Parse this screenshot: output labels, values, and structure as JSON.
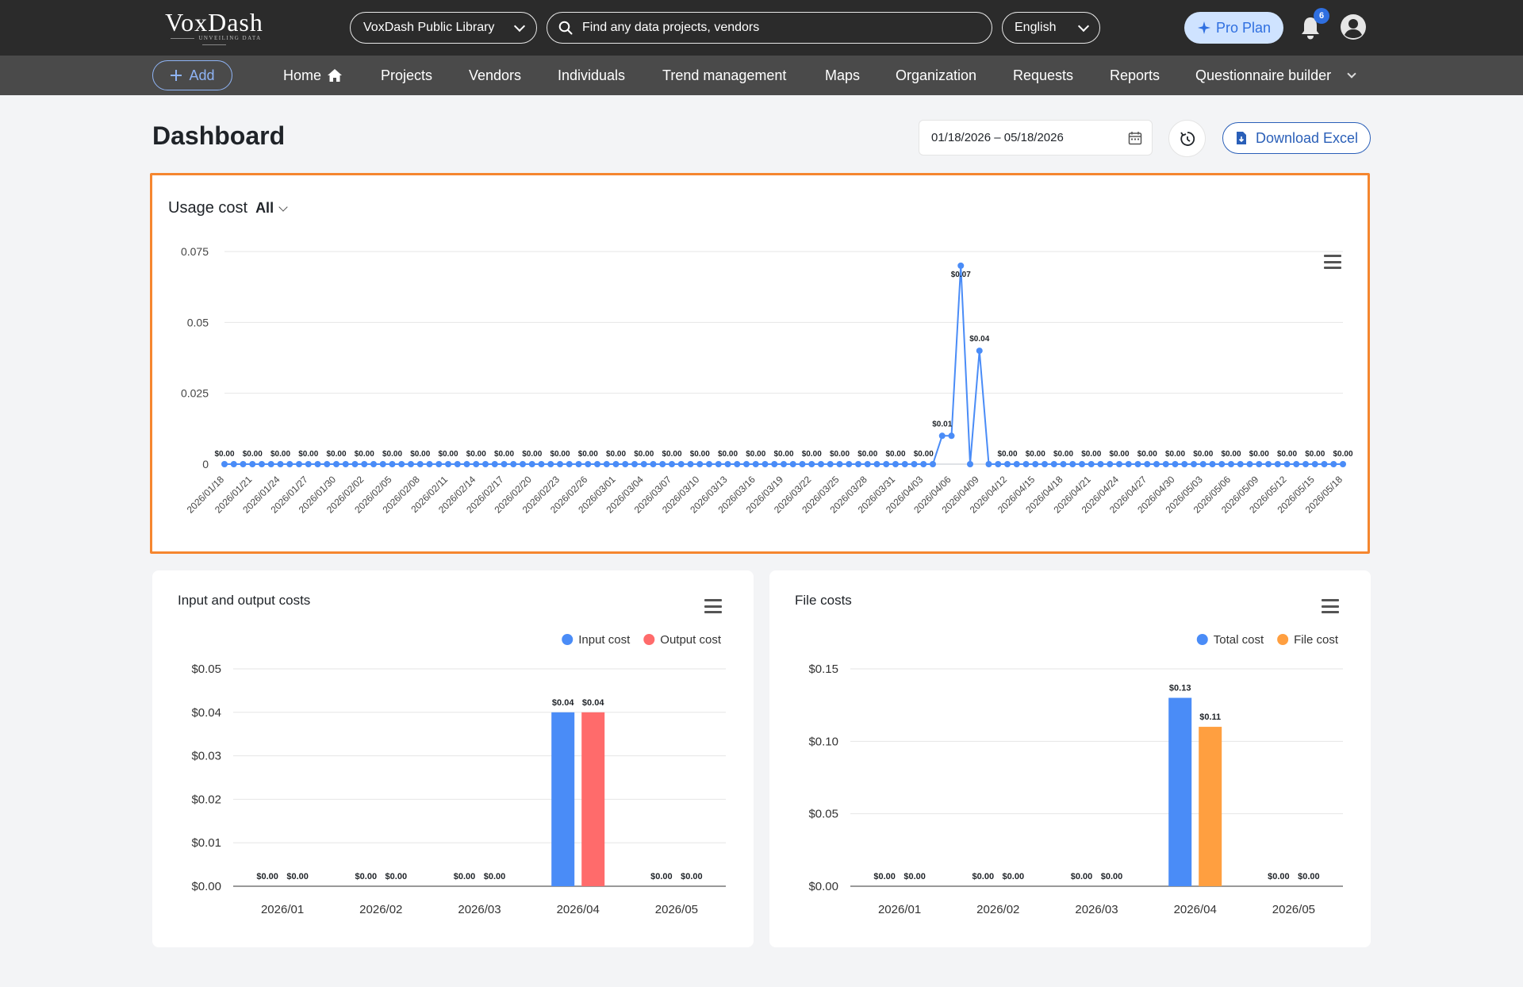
{
  "header": {
    "logo_text": "VoxDash",
    "logo_tagline": "UNVEILING DATA",
    "library_select": "VoxDash Public Library",
    "search_placeholder": "Find any data projects, vendors",
    "language": "English",
    "pro_plan": "Pro Plan",
    "notification_count": "6"
  },
  "nav": {
    "add_label": "Add",
    "items": [
      "Home",
      "Projects",
      "Vendors",
      "Individuals",
      "Trend management",
      "Maps",
      "Organization",
      "Requests",
      "Reports",
      "Questionnaire builder"
    ]
  },
  "page": {
    "title": "Dashboard",
    "date_range": "01/18/2026 – 05/18/2026",
    "download_label": "Download Excel"
  },
  "usage": {
    "title": "Usage cost",
    "filter": "All"
  },
  "io": {
    "title": "Input and output costs"
  },
  "files": {
    "title": "File costs"
  },
  "colors": {
    "topbar": "#2b2b2b",
    "navbar": "#4a4a4a",
    "accent": "#2a5fb8",
    "line_blue": "#4a8cf7",
    "bar_blue": "#4a8cf7",
    "bar_red": "#ff6b6b",
    "bar_orange": "#ff9f40",
    "highlight": "#f5862f"
  },
  "chart_data": [
    {
      "type": "line",
      "title": "Usage cost",
      "x_start": "2026/01/18",
      "x_end": "2026/05/18",
      "x_tick_labels": [
        "2026/01/18",
        "2026/01/21",
        "2026/01/24",
        "2026/01/27",
        "2026/01/30",
        "2026/02/02",
        "2026/02/05",
        "2026/02/08",
        "2026/02/11",
        "2026/02/14",
        "2026/02/17",
        "2026/02/20",
        "2026/02/23",
        "2026/02/26",
        "2026/03/01",
        "2026/03/04",
        "2026/03/07",
        "2026/03/10",
        "2026/03/13",
        "2026/03/16",
        "2026/03/19",
        "2026/03/22",
        "2026/03/25",
        "2026/03/28",
        "2026/03/31",
        "2026/04/03",
        "2026/04/06",
        "2026/04/09",
        "2026/04/12",
        "2026/04/15",
        "2026/04/18",
        "2026/04/21",
        "2026/04/24",
        "2026/04/27",
        "2026/04/30",
        "2026/05/03",
        "2026/05/06",
        "2026/05/09",
        "2026/05/12",
        "2026/05/15",
        "2026/05/18"
      ],
      "points": [
        {
          "x": "2026/04/05",
          "y": 0.01
        },
        {
          "x": "2026/04/06",
          "y": 0.01
        },
        {
          "x": "2026/04/07",
          "y": 0.07
        },
        {
          "x": "2026/04/09",
          "y": 0.04
        }
      ],
      "default_y": 0,
      "data_labels": [
        {
          "x": "2026/04/05",
          "text": "$0.01"
        },
        {
          "x": "2026/04/07",
          "text": "$0.07"
        },
        {
          "x": "2026/04/09",
          "text": "$0.04"
        }
      ],
      "zero_label": "$0.00",
      "y_ticks": [
        "0",
        "0.025",
        "0.05",
        "0.075"
      ],
      "ylim": [
        0,
        0.075
      ]
    },
    {
      "type": "bar",
      "title": "Input and output costs",
      "categories": [
        "2026/01",
        "2026/02",
        "2026/03",
        "2026/04",
        "2026/05"
      ],
      "series": [
        {
          "name": "Input cost",
          "values": [
            0,
            0,
            0,
            0.04,
            0
          ],
          "labels": [
            "$0.00",
            "$0.00",
            "$0.00",
            "$0.04",
            "$0.00"
          ]
        },
        {
          "name": "Output cost",
          "values": [
            0,
            0,
            0,
            0.04,
            0
          ],
          "labels": [
            "$0.00",
            "$0.00",
            "$0.00",
            "$0.04",
            "$0.00"
          ]
        }
      ],
      "y_ticks": [
        "$0.00",
        "$0.01",
        "$0.02",
        "$0.03",
        "$0.04",
        "$0.05"
      ],
      "ylim": [
        0,
        0.05
      ],
      "legend": "top-right"
    },
    {
      "type": "bar",
      "title": "File costs",
      "categories": [
        "2026/01",
        "2026/02",
        "2026/03",
        "2026/04",
        "2026/05"
      ],
      "series": [
        {
          "name": "Total cost",
          "values": [
            0,
            0,
            0,
            0.13,
            0
          ],
          "labels": [
            "$0.00",
            "$0.00",
            "$0.00",
            "$0.13",
            "$0.00"
          ]
        },
        {
          "name": "File cost",
          "values": [
            0,
            0,
            0,
            0.11,
            0
          ],
          "labels": [
            "$0.00",
            "$0.00",
            "$0.00",
            "$0.11",
            "$0.00"
          ]
        }
      ],
      "y_ticks": [
        "$0.00",
        "$0.05",
        "$0.10",
        "$0.15"
      ],
      "ylim": [
        0,
        0.15
      ],
      "legend": "top-right"
    }
  ]
}
